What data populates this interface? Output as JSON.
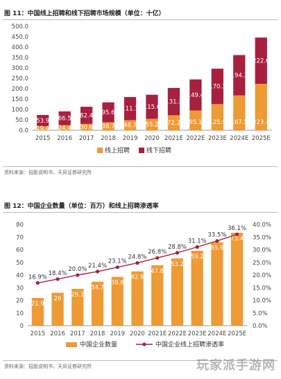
{
  "figures": {
    "fig1_title": "图 11：中国线上招聘和线下招聘市场规模（单位：十亿）",
    "fig2_title": "图 12：中国企业数量（单位：百万）和线上招聘渗透率",
    "source1": "资料来源：招股说明书，天风证券研究所",
    "source2": "资料来源：招股说明书，天风证券研究所",
    "watermark": "玩家派手游网"
  },
  "colors": {
    "orange": "#ee9a35",
    "crimson": "#a8203f",
    "line": "#a8203f"
  },
  "chart_data": [
    {
      "type": "bar",
      "stacked": true,
      "title": "图 11：中国线上招聘和线下招聘市场规模（单位：十亿）",
      "categories": [
        "2015",
        "2016",
        "2017",
        "2018",
        "2019",
        "2020",
        "2021E",
        "2022E",
        "2023E",
        "2024E",
        "2025E"
      ],
      "series": [
        {
          "name": "线上招聘",
          "color": "#ee9a35",
          "values": [
            19.4,
            24.4,
            30.6,
            38.7,
            48.7,
            55.2,
            72.2,
            95.1,
            125.9,
            167.5,
            223.4
          ],
          "labels": [
            "19.4",
            "24.4",
            "30.6",
            "38.7",
            "48.7",
            "55.2",
            "72.2",
            "95.1",
            "125.9",
            "167.5",
            "223.4"
          ]
        },
        {
          "name": "线下招聘",
          "color": "#a8203f",
          "values": [
            53.9,
            66.5,
            82.4,
            95.6,
            111.1,
            115.6,
            131.3,
            149.4,
            170.3,
            194.3,
            222.6
          ],
          "labels": [
            "53.9",
            "66.5",
            "82.4",
            "95.6",
            "111.1",
            "115.6",
            "131.3",
            "149.4",
            "170.3",
            "194.3",
            "222.6"
          ]
        }
      ],
      "ylim": [
        0,
        500
      ],
      "yticks": [
        "0.0",
        "50.0",
        "100.0",
        "150.0",
        "200.0",
        "250.0",
        "300.0",
        "350.0",
        "400.0",
        "450.0",
        "500.0"
      ],
      "legend_position": "bottom"
    },
    {
      "type": "bar",
      "combo": "bar+line",
      "title": "图 12：中国企业数量（单位：百万）和线上招聘渗透率",
      "categories": [
        "2015",
        "2016",
        "2017",
        "2018",
        "2019",
        "2020",
        "2021E",
        "2022E",
        "2023E",
        "2024E",
        "2025E"
      ],
      "series": [
        {
          "name": "中国企业数量",
          "color": "#ee9a35",
          "axis": "left",
          "values": [
            21.9,
            26,
            29.1,
            34.7,
            38.6,
            42.9,
            47.8,
            53.2,
            59.2,
            65.9,
            73.4
          ],
          "labels": [
            "21.9",
            "26",
            "29.1",
            "34.7",
            "38.6",
            "42.9",
            "47.8",
            "53.2",
            "59.2",
            "65.9",
            "73.4"
          ]
        },
        {
          "name": "中国企业线上招聘渗透率",
          "color": "#a8203f",
          "axis": "right",
          "values": [
            16.9,
            18.4,
            20.0,
            21.4,
            23.1,
            24.8,
            26.8,
            28.8,
            31.1,
            33.5,
            36.1
          ],
          "labels": [
            "16.9%",
            "18.4%",
            "20.0%",
            "21.4%",
            "23.1%",
            "24.8%",
            "26.8%",
            "28.8%",
            "31.1%",
            "33.5%",
            "36.1%"
          ]
        }
      ],
      "ylim_left": [
        0,
        80
      ],
      "yticks_left": [
        "0",
        "10",
        "20",
        "30",
        "40",
        "50",
        "60",
        "70",
        "80"
      ],
      "ylim_right": [
        0,
        40
      ],
      "yticks_right": [
        "0.0%",
        "5.0%",
        "10.0%",
        "15.0%",
        "20.0%",
        "25.0%",
        "30.0%",
        "35.0%",
        "40.0%"
      ],
      "legend_position": "bottom"
    }
  ]
}
